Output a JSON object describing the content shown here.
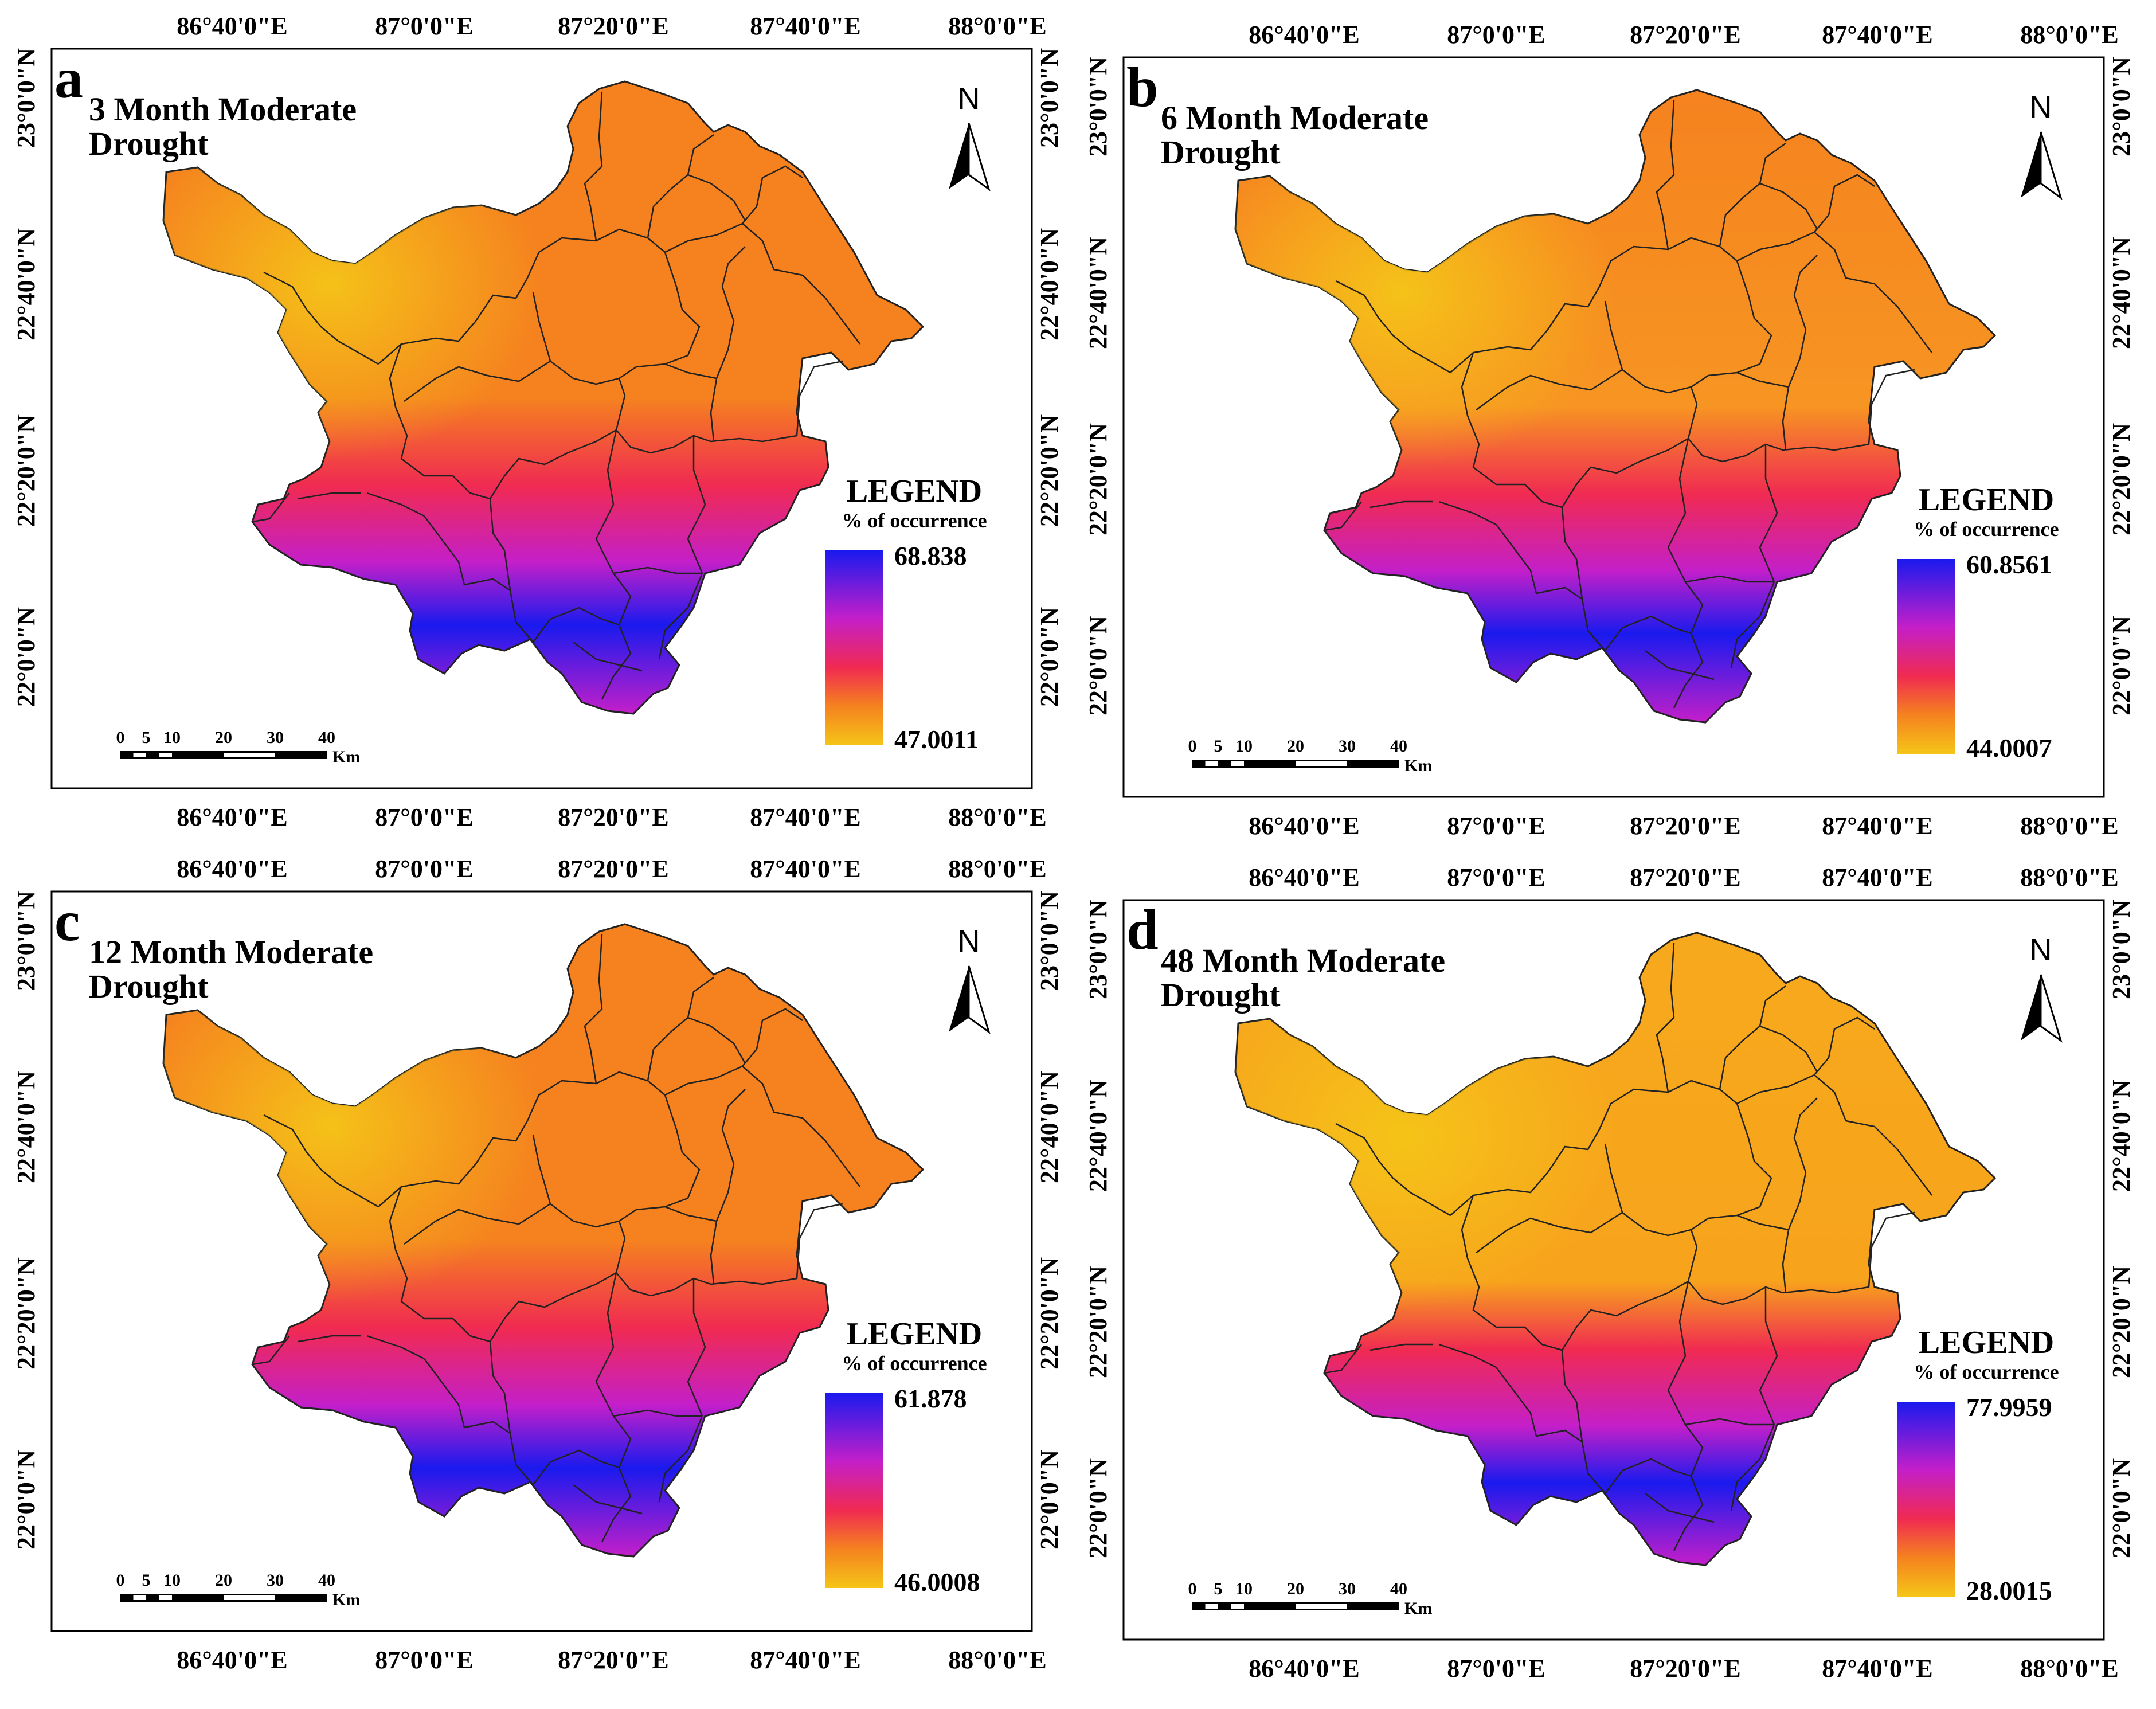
{
  "figure": {
    "lon_ticks": [
      "86°40'0\"E",
      "87°0'0\"E",
      "87°20'0\"E",
      "87°40'0\"E",
      "88°0'0\"E"
    ],
    "lat_ticks": [
      "23°0'0\"N",
      "22°40'0\"N",
      "22°20'0\"N",
      "22°0'0\"N"
    ],
    "north_label": "N",
    "scale_bar": {
      "labels": [
        "0",
        "5",
        "10",
        "20",
        "30",
        "40"
      ],
      "unit": "Km"
    },
    "legend_title": "LEGEND",
    "legend_subtitle": "% of occurrence",
    "colors": {
      "low": "#f5c518",
      "mid_low": "#f5821f",
      "mid": "#f02a52",
      "mid_high": "#c41fc9",
      "high": "#1a1aee",
      "boundary": "#222222"
    }
  },
  "panels": [
    {
      "letter": "a",
      "title_line1": "3 Month Moderate",
      "title_line2": "Drought",
      "legend_max": "68.838",
      "legend_min": "47.0011"
    },
    {
      "letter": "b",
      "title_line1": "6 Month Moderate",
      "title_line2": "Drought",
      "legend_max": "60.8561",
      "legend_min": "44.0007"
    },
    {
      "letter": "c",
      "title_line1": "12 Month Moderate",
      "title_line2": "Drought",
      "legend_max": "61.878",
      "legend_min": "46.0008"
    },
    {
      "letter": "d",
      "title_line1": "48 Month Moderate",
      "title_line2": "Drought",
      "legend_max": "77.9959",
      "legend_min": "28.0015"
    }
  ]
}
